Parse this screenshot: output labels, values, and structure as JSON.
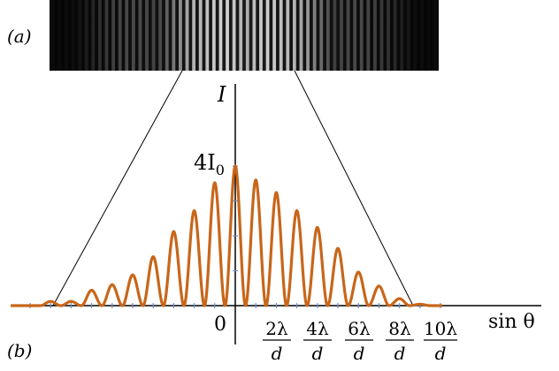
{
  "panels": {
    "a_label": "(a)",
    "b_label": "(b)"
  },
  "axes": {
    "y_label": "I",
    "y_peak_label": {
      "base": "4I",
      "sub": "0"
    },
    "origin_label": "0",
    "x_label": "sin θ",
    "x_tick_labels": [
      {
        "num": "2λ",
        "den": "d"
      },
      {
        "num": "4λ",
        "den": "d"
      },
      {
        "num": "6λ",
        "den": "d"
      },
      {
        "num": "8λ",
        "den": "d"
      },
      {
        "num": "10λ",
        "den": "d"
      }
    ]
  },
  "colors": {
    "curve": "#c8661a",
    "axis": "#000000",
    "tick": "#6a8fd0",
    "fringe_bg": "#1a1a1a",
    "fringe_bright": "#e8e8e8"
  },
  "chart_data": {
    "type": "line",
    "description_kind": "double-slit interference fringes under a diffraction envelope",
    "x_unit": "λ/d",
    "fringe_spacing": 1,
    "envelope_first_zero": 8.5,
    "y_peak_value": "4I0",
    "peaks": [
      {
        "x": -8,
        "y": 0.03
      },
      {
        "x": -7,
        "y": 0.11
      },
      {
        "x": -6,
        "y": 0.15
      },
      {
        "x": -5,
        "y": 0.22
      },
      {
        "x": -4,
        "y": 0.35
      },
      {
        "x": -3,
        "y": 0.53
      },
      {
        "x": -2,
        "y": 0.68
      },
      {
        "x": -1,
        "y": 0.88
      },
      {
        "x": 0,
        "y": 1.0
      },
      {
        "x": 1,
        "y": 0.9
      },
      {
        "x": 2,
        "y": 0.81
      },
      {
        "x": 3,
        "y": 0.68
      },
      {
        "x": 4,
        "y": 0.56
      },
      {
        "x": 5,
        "y": 0.41
      },
      {
        "x": 6,
        "y": 0.24
      },
      {
        "x": 7,
        "y": 0.14
      },
      {
        "x": 8,
        "y": 0.05
      },
      {
        "x": 9,
        "y": 0.01
      }
    ]
  }
}
